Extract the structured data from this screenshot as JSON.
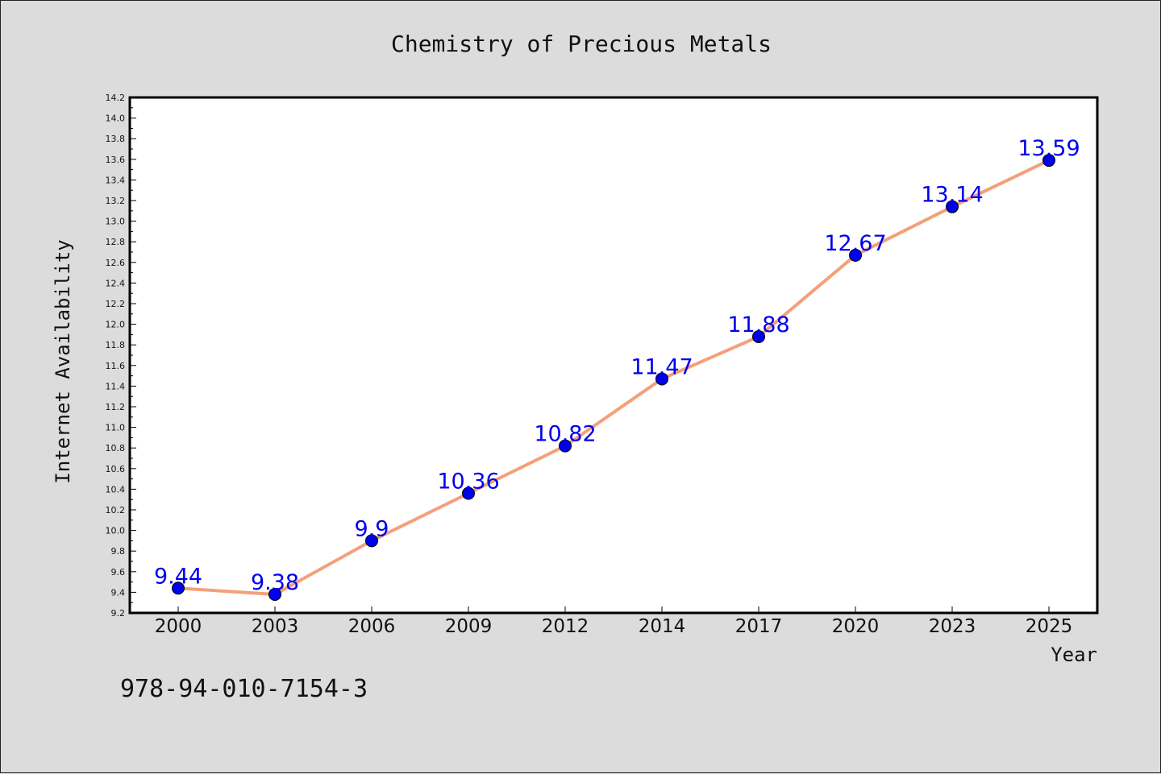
{
  "chart_data": {
    "type": "line",
    "title": "Chemistry of Precious Metals",
    "xlabel": "Year",
    "ylabel": "Internet Availability",
    "categories": [
      "2000",
      "2003",
      "2006",
      "2009",
      "2012",
      "2014",
      "2017",
      "2020",
      "2023",
      "2025"
    ],
    "series": [
      {
        "values": [
          9.44,
          9.38,
          9.9,
          10.36,
          10.82,
          11.47,
          11.88,
          12.67,
          13.14,
          13.59
        ]
      }
    ],
    "data_labels": [
      "9.44",
      "9.38",
      "9.9",
      "10.36",
      "10.82",
      "11.47",
      "11.88",
      "12.67",
      "13.14",
      "13.59"
    ],
    "ylim": [
      9.2,
      14.2
    ],
    "y_major_step": 0.2,
    "y_minor_step": 0.1,
    "grid": false,
    "legend": "none",
    "colors": {
      "line": "#f4a07a",
      "marker": "#0000ee",
      "data_label": "#0000ee",
      "plot_bg": "#ffffff",
      "figure_bg": "#dcdcdc"
    }
  },
  "footer": {
    "isbn": "978-94-010-7154-3"
  }
}
